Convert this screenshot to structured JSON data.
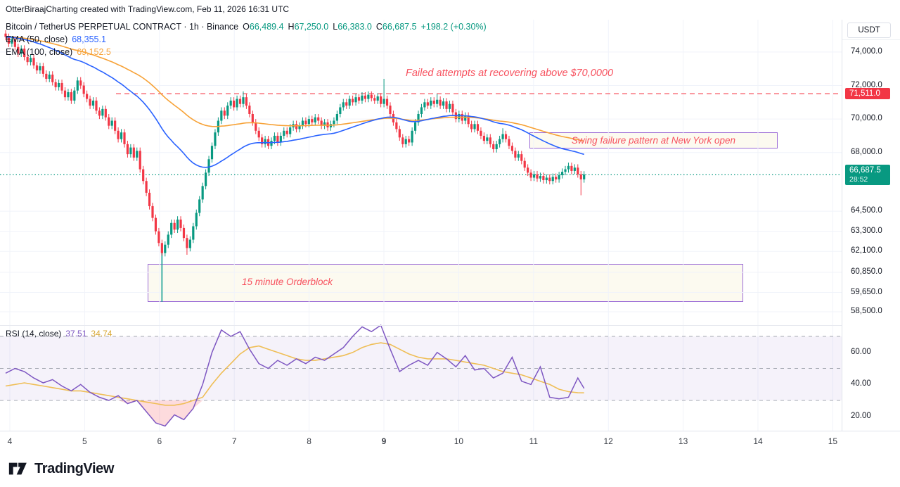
{
  "header": {
    "attribution": "OtterBiraajCharting created with TradingView.com, Feb 11, 2026 16:31 UTC"
  },
  "legend": {
    "symbol_line": "Bitcoin / TetherUS PERPETUAL CONTRACT · 1h · Binance",
    "ohlc": {
      "o_label": "O",
      "o_value": "66,489.4",
      "h_label": "H",
      "h_value": "67,250.0",
      "l_label": "L",
      "l_value": "66,383.0",
      "c_label": "C",
      "c_value": "66,687.5",
      "change_value": "+198.2 (+0.30%)"
    },
    "ema50": {
      "label": "EMA (50, close)",
      "value": "68,355.1"
    },
    "ema100": {
      "label": "EMA (100, close)",
      "value": "69,152.5"
    }
  },
  "annotations": {
    "failed_attempts": "Failed attempts at recovering above $70,0000",
    "swing_failure": "Swing failure pattern at New York open",
    "orderblock": "15 minute Orderblock"
  },
  "price_axis": {
    "currency": "USDT",
    "labels": [
      {
        "text": "74,000.0",
        "price": 74000
      },
      {
        "text": "72,000.0",
        "price": 72000
      },
      {
        "text": "70,000.0",
        "price": 70000
      },
      {
        "text": "68,000.0",
        "price": 68000
      },
      {
        "text": "64,500.0",
        "price": 64500
      },
      {
        "text": "63,300.0",
        "price": 63300
      },
      {
        "text": "62,100.0",
        "price": 62100
      },
      {
        "text": "60,850.0",
        "price": 60850
      },
      {
        "text": "59,650.0",
        "price": 59650
      },
      {
        "text": "58,500.0",
        "price": 58500
      }
    ],
    "alert_badge": {
      "text": "71,511.0",
      "price": 71511
    },
    "last_badge": {
      "text": "66,687.5",
      "countdown": "28:52",
      "price": 66687.5
    }
  },
  "rsi_pane": {
    "legend_label": "RSI (14, close)",
    "value": "37.51",
    "ma_value": "34.74",
    "axis_labels": [
      {
        "text": "60.00",
        "value": 60
      },
      {
        "text": "40.00",
        "value": 40
      },
      {
        "text": "20.00",
        "value": 20
      }
    ]
  },
  "time_axis": {
    "labels": [
      {
        "text": "4",
        "day": 4
      },
      {
        "text": "5",
        "day": 5
      },
      {
        "text": "6",
        "day": 6
      },
      {
        "text": "7",
        "day": 7
      },
      {
        "text": "8",
        "day": 8
      },
      {
        "text": "9",
        "day": 9,
        "bold": true
      },
      {
        "text": "10",
        "day": 10
      },
      {
        "text": "11",
        "day": 11
      },
      {
        "text": "12",
        "day": 12
      },
      {
        "text": "13",
        "day": 13
      },
      {
        "text": "14",
        "day": 14
      },
      {
        "text": "15",
        "day": 15
      }
    ]
  },
  "footer": {
    "brand": "TradingView"
  },
  "colors": {
    "up": "#089981",
    "down": "#F23645",
    "ema50": "#2962FF",
    "ema100": "#F7A237",
    "rsi_line": "#7E57C2",
    "rsi_ma": "#EFBE56",
    "annotation_red": "#F7525F",
    "drawing_purple": "#9B6BD6",
    "alert_badge_bg": "#F23645",
    "last_badge_bg": "#089981",
    "teal_line": "#26A69A"
  },
  "chart_data": [
    {
      "type": "candlestick",
      "title": "Bitcoin / TetherUS PERPETUAL CONTRACT · 1h · Binance",
      "interval": "1h",
      "last_ohlc": {
        "open": 66489.4,
        "high": 67250.0,
        "low": 66383.0,
        "close": 66687.5,
        "change": 198.2,
        "change_pct": 0.3
      },
      "indicators": {
        "ema50": 68355.1,
        "ema100": 69152.5
      },
      "levels": {
        "resistance": 71511.0,
        "last_price": 66687.5
      },
      "y_axis_range": [
        58500,
        75500
      ],
      "x_days_feb": [
        4,
        5,
        6,
        7,
        8,
        9,
        10,
        11,
        12,
        13,
        14,
        15
      ],
      "first_open": 75100,
      "typical_wick": 200,
      "wick_overrides": {
        "50": {
          "low": 61850
        },
        "58": {
          "low": 61900
        },
        "76": {
          "high": 71650
        },
        "121": {
          "high": 72400
        },
        "138": {
          "high": 71500
        },
        "159": {
          "high": 69450
        },
        "184": {
          "low": 65450
        }
      },
      "closes": [
        74900,
        74500,
        74750,
        74300,
        73900,
        74200,
        73700,
        73400,
        73650,
        73200,
        72900,
        73150,
        72700,
        72400,
        72650,
        72200,
        71900,
        72150,
        71700,
        71300,
        71600,
        71100,
        71700,
        72300,
        72000,
        71500,
        71200,
        70800,
        71100,
        70500,
        70200,
        70600,
        70100,
        69600,
        69900,
        69300,
        68800,
        69200,
        68500,
        67900,
        68300,
        67700,
        68100,
        67000,
        66300,
        65600,
        64800,
        64100,
        63300,
        62600,
        62000,
        62500,
        63100,
        63800,
        63400,
        64000,
        63500,
        62900,
        62300,
        62800,
        63600,
        64400,
        65200,
        66000,
        66800,
        67600,
        68400,
        69200,
        69900,
        70500,
        70200,
        70800,
        71100,
        70700,
        71200,
        70900,
        71300,
        70800,
        70300,
        69800,
        69300,
        68900,
        68500,
        68800,
        68400,
        68700,
        69000,
        68600,
        69000,
        69300,
        69100,
        69500,
        69700,
        69400,
        69600,
        69900,
        69700,
        70000,
        69800,
        70100,
        69900,
        69600,
        69800,
        69500,
        69700,
        69900,
        70300,
        70700,
        71000,
        70800,
        71200,
        71000,
        71300,
        71100,
        71400,
        71200,
        71450,
        71250,
        71100,
        71350,
        70900,
        71200,
        70800,
        70300,
        69800,
        69400,
        68900,
        68500,
        68800,
        68600,
        69300,
        69800,
        70300,
        70700,
        71000,
        70800,
        71100,
        70900,
        71150,
        70800,
        71050,
        70600,
        70900,
        70400,
        70000,
        70300,
        69900,
        70200,
        69700,
        69400,
        69700,
        69300,
        69000,
        68700,
        68900,
        68500,
        68200,
        68500,
        68800,
        69100,
        68800,
        68400,
        68100,
        67700,
        67900,
        67500,
        67100,
        66800,
        66500,
        66700,
        66450,
        66600,
        66350,
        66500,
        66300,
        66550,
        66400,
        66650,
        66850,
        67000,
        67200,
        66900,
        67100,
        66700,
        66400,
        66687.5
      ]
    },
    {
      "type": "line",
      "title": "RSI (14, close)",
      "y_axis_range": [
        0,
        100
      ],
      "bands": [
        70,
        50,
        30
      ],
      "sample_step": 3,
      "last_index": 185,
      "series": [
        {
          "name": "RSI",
          "values": [
            47,
            50,
            48,
            44,
            41,
            43,
            39,
            36,
            40,
            35,
            32,
            30,
            33,
            28,
            30,
            23,
            16,
            14,
            21,
            18,
            25,
            40,
            60,
            74,
            70,
            73,
            62,
            53,
            50,
            55,
            52,
            56,
            53,
            57,
            55,
            59,
            63,
            70,
            76,
            73,
            77,
            62,
            48,
            52,
            55,
            52,
            60,
            56,
            51,
            58,
            49,
            50,
            44,
            47,
            57,
            42,
            40,
            51,
            32,
            31,
            32,
            44,
            37.51
          ]
        },
        {
          "name": "RSI-based MA",
          "values": [
            39,
            40,
            41,
            40,
            39,
            38,
            37,
            36,
            36,
            35,
            34,
            33,
            32,
            31,
            30,
            29,
            28,
            27,
            27,
            28,
            30,
            32,
            40,
            47,
            53,
            59,
            63,
            64,
            62,
            60,
            58,
            56,
            55,
            55,
            56,
            57,
            58,
            60,
            63,
            65,
            66,
            65,
            62,
            59,
            57,
            56,
            56,
            56,
            55,
            54,
            53,
            52,
            50,
            48,
            47,
            46,
            44,
            42,
            40,
            37,
            35.5,
            34.8,
            34.74
          ]
        }
      ]
    }
  ]
}
